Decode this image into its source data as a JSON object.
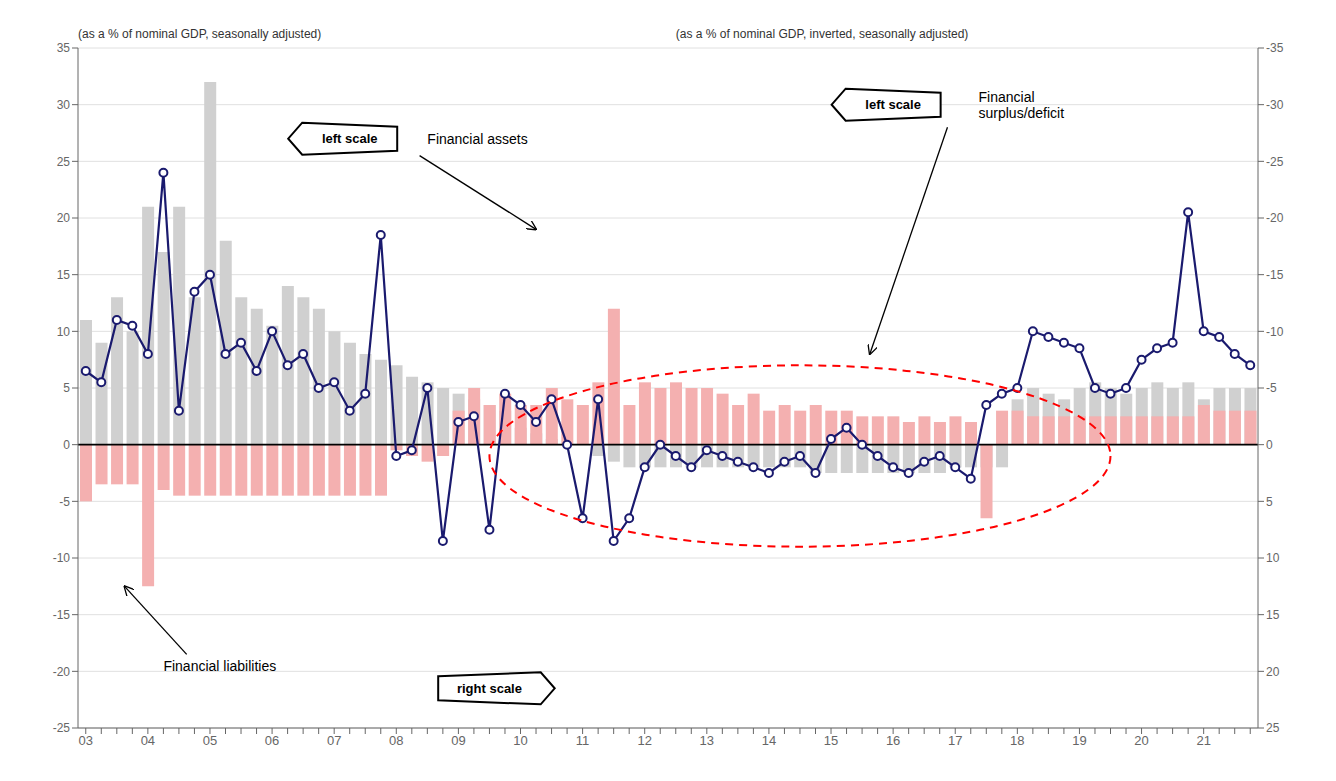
{
  "chart_data": {
    "type": "bar",
    "categories": [
      "03",
      null,
      null,
      null,
      "04",
      null,
      null,
      null,
      "05",
      null,
      null,
      null,
      "06",
      null,
      null,
      null,
      "07",
      null,
      null,
      null,
      "08",
      null,
      null,
      null,
      "09",
      null,
      null,
      null,
      "10",
      null,
      null,
      null,
      "11",
      null,
      null,
      null,
      "12",
      null,
      null,
      null,
      "13",
      null,
      null,
      null,
      "14",
      null,
      null,
      null,
      "15",
      null,
      null,
      null,
      "16",
      null,
      null,
      null,
      "17",
      null,
      null,
      null,
      "18",
      null,
      null,
      null,
      "19",
      null,
      null,
      null,
      "20",
      null,
      null,
      null,
      "21",
      null,
      null,
      null
    ],
    "series": [
      {
        "type": "bar",
        "color": "#d0d0d0",
        "values": [
          11.0,
          9.0,
          13.0,
          10.0,
          21.0,
          17.0,
          21.0,
          13.0,
          32.0,
          18.0,
          13.0,
          12.0,
          10.5,
          14.0,
          13.0,
          12.0,
          10.0,
          9.0,
          8.0,
          7.5,
          7.0,
          6.0,
          5.5,
          5.0,
          4.5,
          4.0,
          3.5,
          3.0,
          1.5,
          1.0,
          0.5,
          0.0,
          0.0,
          -1.0,
          -1.5,
          -2.0,
          -2.0,
          -2.0,
          -2.0,
          -2.0,
          -2.0,
          -2.0,
          -2.0,
          -2.0,
          -2.0,
          -2.0,
          -2.0,
          -2.5,
          -2.5,
          -2.5,
          -2.5,
          -2.5,
          -2.5,
          -2.5,
          -2.5,
          -2.5,
          -2.0,
          -2.0,
          -2.0,
          -2.0,
          4.0,
          5.0,
          4.5,
          4.0,
          5.0,
          5.5,
          5.0,
          4.5,
          5.0,
          5.5,
          5.0,
          5.5,
          4.0,
          5.0,
          5.0,
          5.0
        ]
      },
      {
        "type": "bar",
        "color": "#f4b0b0",
        "values": [
          -5.0,
          -3.5,
          -3.5,
          -3.5,
          -12.5,
          -4.0,
          -4.5,
          -4.5,
          -4.5,
          -4.5,
          -4.5,
          -4.5,
          -4.5,
          -4.5,
          -4.5,
          -4.5,
          -4.5,
          -4.5,
          -4.5,
          -4.5,
          -0.5,
          -1.0,
          -1.5,
          -1.0,
          3.0,
          5.0,
          3.5,
          4.5,
          3.5,
          3.5,
          5.0,
          4.0,
          3.5,
          5.5,
          12.0,
          3.5,
          5.5,
          5.0,
          5.5,
          5.0,
          5.0,
          4.5,
          3.5,
          4.5,
          3.0,
          3.5,
          3.0,
          3.5,
          3.0,
          3.0,
          2.5,
          2.5,
          2.5,
          2.0,
          2.5,
          2.0,
          2.5,
          2.0,
          -6.5,
          3.0,
          3.0,
          2.5,
          2.5,
          2.5,
          2.5,
          2.5,
          2.5,
          2.5,
          2.5,
          2.5,
          2.5,
          2.5,
          3.5,
          3.0,
          3.0,
          3.0
        ]
      },
      {
        "type": "line",
        "color": "#1a1a6e",
        "marker": "circle",
        "values": [
          6.5,
          5.5,
          11.0,
          10.5,
          8.0,
          24.0,
          3.0,
          13.5,
          15.0,
          8.0,
          9.0,
          6.5,
          10.0,
          7.0,
          8.0,
          5.0,
          5.5,
          3.0,
          4.5,
          18.5,
          -1.0,
          -0.5,
          5.0,
          -8.5,
          2.0,
          2.5,
          -7.5,
          4.5,
          3.5,
          2.0,
          4.0,
          0.0,
          -6.5,
          4.0,
          -8.5,
          -6.5,
          -2.0,
          0.0,
          -1.0,
          -2.0,
          -0.5,
          -1.0,
          -1.5,
          -2.0,
          -2.5,
          -1.5,
          -1.0,
          -2.5,
          0.5,
          1.5,
          0.0,
          -1.0,
          -2.0,
          -2.5,
          -1.5,
          -1.0,
          -2.0,
          -3.0,
          3.5,
          4.5,
          5.0,
          10.0,
          9.5,
          9.0,
          8.5,
          5.0,
          4.5,
          5.0,
          7.5,
          8.5,
          9.0,
          20.5,
          10.0,
          9.5,
          8.0,
          7.0
        ]
      }
    ],
    "ylim": [
      -25,
      35
    ],
    "yticks": [
      -25,
      -20,
      -15,
      -10,
      -5,
      0,
      5,
      10,
      15,
      20,
      25,
      30,
      35
    ],
    "y2lim": [
      25,
      -35
    ],
    "y2ticks": [
      -35,
      -30,
      -25,
      -20,
      -15,
      -10,
      -5,
      0,
      5,
      10,
      15,
      20,
      25
    ],
    "grid": true,
    "annotations": [
      "(as a % of nominal GDP, seasonally adjusted)",
      "(as a % of nominal GDP, inverted, seasonally adjusted)",
      "left scale",
      "Financial assets",
      "left scale",
      "Financial\nsurplus/deficit",
      "Financial liabilities",
      "right scale"
    ]
  }
}
